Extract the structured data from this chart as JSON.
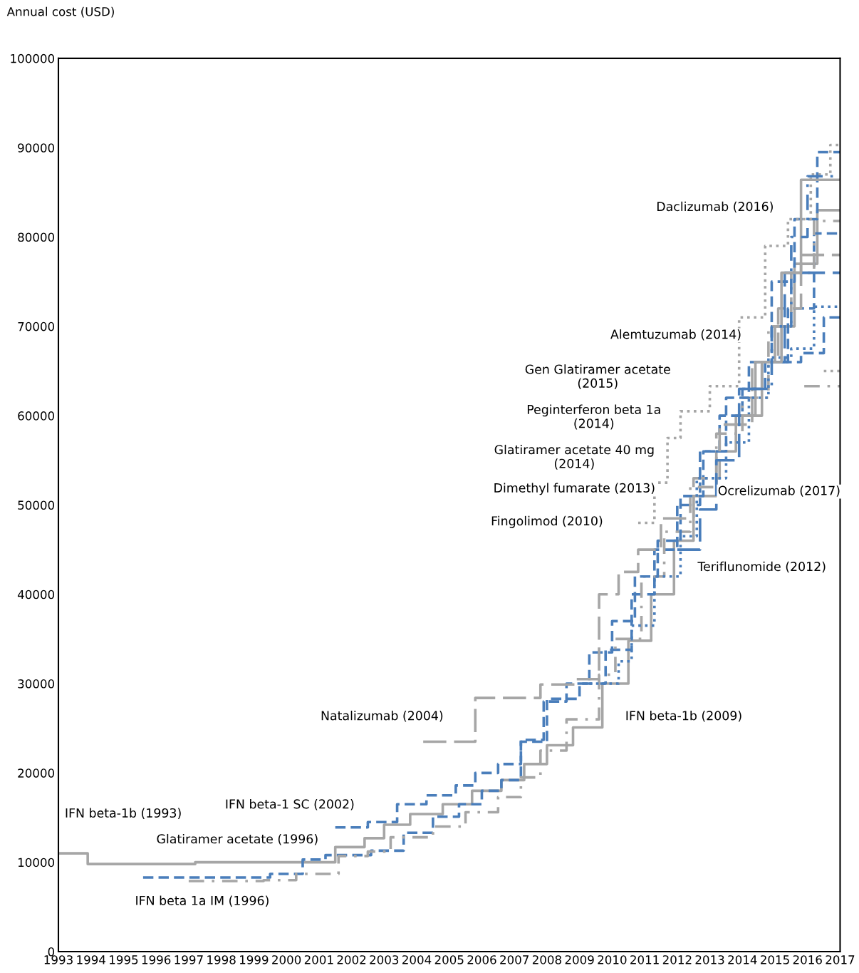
{
  "chart_data": {
    "type": "step",
    "ylabel": "Annual cost (USD)",
    "xlim": [
      1993,
      2017
    ],
    "xticks": [
      1993,
      1994,
      1995,
      1996,
      1997,
      1998,
      1999,
      2000,
      2001,
      2002,
      2003,
      2004,
      2005,
      2006,
      2007,
      2008,
      2009,
      2010,
      2011,
      2012,
      2013,
      2014,
      2015,
      2016,
      2017
    ],
    "ylim": [
      0,
      100000
    ],
    "yticks": [
      0,
      10000,
      20000,
      30000,
      40000,
      50000,
      60000,
      70000,
      80000,
      90000,
      100000
    ],
    "grid": false,
    "series": [
      {
        "color": "#a6a6a6",
        "line_style": "solid",
        "x": [
          1993,
          1993.9,
          1997.2,
          2001.5,
          2002.4,
          2003.0,
          2003.8,
          2004.8,
          2005.7,
          2006.6,
          2007.3,
          2008.0,
          2008.8,
          2009.7,
          2010.5,
          2011.2,
          2011.9,
          2012.5,
          2013.2,
          2013.8,
          2014.4,
          2015.0,
          2015.6,
          2016.3,
          2017
        ],
        "values": [
          11000,
          9800,
          10000,
          11700,
          12700,
          14200,
          15400,
          16500,
          18000,
          19200,
          21000,
          23100,
          25100,
          30000,
          34800,
          40000,
          46000,
          51000,
          56000,
          60000,
          66000,
          70000,
          77000,
          83000,
          83000
        ]
      },
      {
        "color": "#4a7ebb",
        "line_style": "dashed",
        "x": [
          1995.6,
          1999.5,
          2000.5,
          2001.2,
          2002.6,
          2003.6,
          2004.5,
          2005.3,
          2006.0,
          2006.6,
          2007.2,
          2008.0,
          2009.0,
          2009.8,
          2010.6,
          2011.3,
          2012.0,
          2012.7,
          2013.3,
          2014.0,
          2014.7,
          2015.4,
          2016.2,
          2017
        ],
        "values": [
          8300,
          8700,
          10300,
          10800,
          11300,
          13300,
          15100,
          16500,
          18000,
          19200,
          23500,
          28300,
          30000,
          33800,
          40000,
          45000,
          50000,
          56000,
          60000,
          63000,
          66000,
          72000,
          80400,
          80400
        ]
      },
      {
        "color": "#a6a6a6",
        "line_style": "dashdot",
        "x": [
          1997,
          1999.3,
          2000.3,
          2001.6,
          2002.5,
          2003.2,
          2004.5,
          2005.5,
          2006.5,
          2007.2,
          2007.8,
          2008.6,
          2009.6,
          2010.1,
          2010.9,
          2011.6,
          2012.4,
          2013.2,
          2014.0,
          2014.8,
          2015.5,
          2016.2,
          2017
        ],
        "values": [
          7900,
          8000,
          8700,
          10700,
          11200,
          12800,
          14000,
          15600,
          17300,
          19500,
          22500,
          26000,
          31000,
          35000,
          42000,
          47000,
          52000,
          58000,
          62000,
          70000,
          76000,
          81800,
          81800
        ]
      },
      {
        "color": "#4a7ebb",
        "line_style": "dashed",
        "x": [
          2001.5,
          2002.5,
          2003.4,
          2004.3,
          2005.2,
          2005.8,
          2006.5,
          2007.2,
          2007.9,
          2008.6,
          2009.3,
          2010.0,
          2010.7,
          2011.4,
          2012.1,
          2012.8,
          2013.5,
          2014.2,
          2014.9,
          2015.6,
          2016.3,
          2017
        ],
        "values": [
          13900,
          14500,
          16500,
          17500,
          18600,
          20000,
          21000,
          23700,
          28000,
          30000,
          33500,
          37000,
          42000,
          46000,
          51000,
          56000,
          62000,
          66000,
          75000,
          82000,
          89500,
          89500
        ]
      },
      {
        "color": "#a6a6a6",
        "line_style": "longdash",
        "x": [
          2004.2,
          2005.8,
          2007.8,
          2008.9,
          2009.6,
          2010.2,
          2010.8,
          2011.5,
          2012.5,
          2013.3,
          2014.3,
          2015.1,
          2015.8,
          2017
        ],
        "values": [
          23500,
          28400,
          29900,
          30500,
          40000,
          42500,
          45000,
          48500,
          53000,
          59000,
          66000,
          72000,
          78000,
          78000
        ]
      },
      {
        "color": "#4a7ebb",
        "line_style": "dotted",
        "x": [
          2009.3,
          2010.2,
          2010.6,
          2011.3,
          2012.1,
          2012.6,
          2013.5,
          2014.2,
          2014.8,
          2015.5,
          2016.2,
          2017
        ],
        "values": [
          30000,
          32500,
          36500,
          42000,
          46500,
          53000,
          57000,
          62000,
          66500,
          67500,
          72200,
          72200
        ]
      },
      {
        "color": "#a6a6a6",
        "line_style": "dotted",
        "x": [
          2010.8,
          2011.3,
          2011.7,
          2012.1,
          2013.0,
          2013.9,
          2014.7,
          2015.4,
          2016.1,
          2016.7,
          2017
        ],
        "values": [
          48000,
          52500,
          57500,
          60500,
          63300,
          71000,
          79000,
          82000,
          87000,
          90300,
          90300
        ]
      },
      {
        "color": "#4a7ebb",
        "line_style": "longdash",
        "x": [
          2012.0,
          2012.7,
          2013.2,
          2013.9,
          2014.6,
          2015.3,
          2017
        ],
        "values": [
          45000,
          49500,
          55000,
          63000,
          66000,
          76000,
          76000
        ]
      },
      {
        "color": "#4a7ebb",
        "line_style": "dashed",
        "x": [
          2015.2,
          2015.8,
          2016.5,
          2017
        ],
        "values": [
          66000,
          67000,
          71000,
          71000
        ]
      },
      {
        "color": "#a6a6a6",
        "line_style": "solid",
        "x": [
          2014.0,
          2014.6,
          2015.2,
          2015.8,
          2017
        ],
        "values": [
          60000,
          66000,
          76000,
          86400,
          86400
        ]
      },
      {
        "color": "#4a7ebb",
        "line_style": "dashdot",
        "x": [
          2014.3,
          2014.9,
          2015.5,
          2016.0,
          2017
        ],
        "values": [
          63000,
          70000,
          80000,
          86800,
          86800
        ]
      },
      {
        "color": "#a6a6a6",
        "line_style": "dashdot",
        "x": [
          2015.9,
          2017
        ],
        "values": [
          63300,
          63300
        ]
      },
      {
        "color": "#a6a6a6",
        "line_style": "dotted",
        "x": [
          2016.5,
          2017
        ],
        "values": [
          65000,
          65000
        ]
      }
    ],
    "annotations": [
      "IFN beta-1b (1993)",
      "Glatiramer acetate (1996)",
      "IFN beta 1a IM (1996)",
      "IFN beta-1 SC (2002)",
      "Natalizumab (2004)",
      "IFN beta-1b (2009)",
      "Fingolimod (2010)",
      "Teriflunomide (2012)",
      "Dimethyl fumarate (2013)",
      "Glatiramer acetate 40 mg\n(2014)",
      "Peginterferon beta 1a\n(2014)",
      "Gen Glatiramer acetate\n(2015)",
      "Alemtuzumab (2014)",
      "Ocrelizumab (2017)",
      "Daclizumab (2016)"
    ]
  }
}
